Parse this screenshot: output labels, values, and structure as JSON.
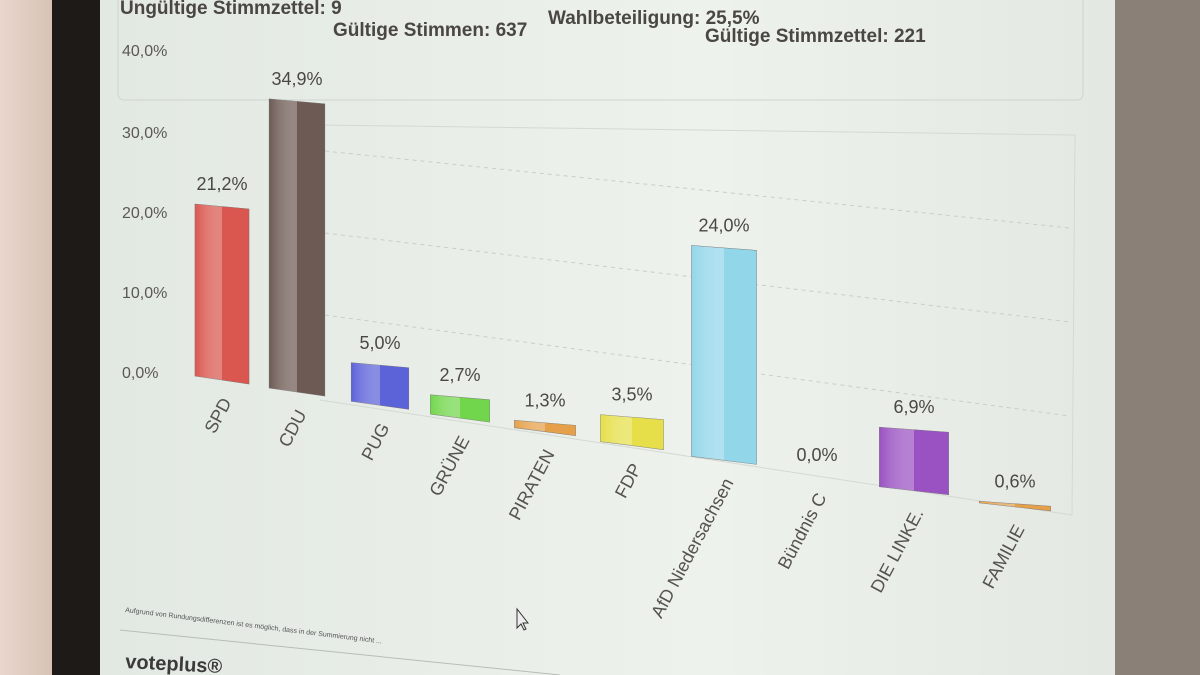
{
  "header": {
    "invalid_ballots": "Ungültige Stimmzettel: 9",
    "valid_votes": "Gültige Stimmen: 637",
    "turnout": "Wahlbeteiligung:  25,5%",
    "valid_ballots": "Gültige Stimmzettel: 221"
  },
  "chart_data": {
    "type": "bar",
    "categories": [
      "SPD",
      "CDU",
      "PUG",
      "GRÜNE",
      "PIRATEN",
      "FDP",
      "AfD Niedersachsen",
      "Bündnis C",
      "DIE LINKE.",
      "FAMILIE"
    ],
    "values": [
      21.2,
      34.9,
      5.0,
      2.7,
      1.3,
      3.5,
      24.0,
      0.0,
      6.9,
      0.6
    ],
    "value_labels": [
      "21,2%",
      "34,9%",
      "5,0%",
      "2,7%",
      "1,3%",
      "3,5%",
      "24,0%",
      "0,0%",
      "6,9%",
      "0,6%"
    ],
    "colors": [
      "#d9574f",
      "#6e5a54",
      "#5c62d8",
      "#72d64c",
      "#e6a04a",
      "#e6df4a",
      "#92d6ea",
      "#cccccc",
      "#9a52c2",
      "#e6a04a"
    ],
    "ylim": [
      0,
      40
    ],
    "yticks": [
      "0,0%",
      "10,0%",
      "20,0%",
      "30,0%",
      "40,0%"
    ],
    "grid": true
  },
  "footnote": "Aufgrund von Rundungsdifferenzen ist es möglich, dass in der Summierung nicht ...",
  "logo": "voteplus®"
}
